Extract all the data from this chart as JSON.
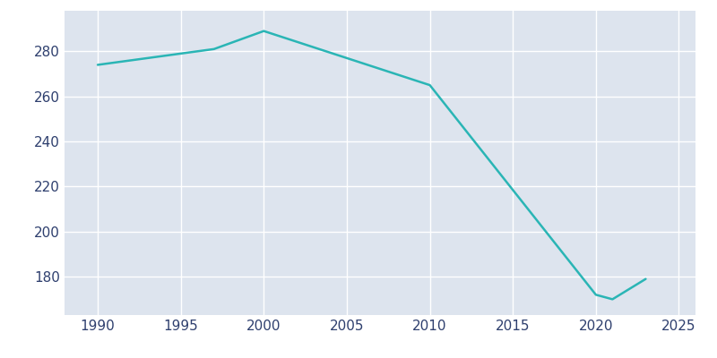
{
  "years": [
    1990,
    1997,
    2000,
    2010,
    2020,
    2021,
    2023
  ],
  "population": [
    274,
    281,
    289,
    265,
    172,
    170,
    179
  ],
  "line_color": "#2ab5b5",
  "plot_bg_color": "#dde4ee",
  "fig_bg_color": "#ffffff",
  "grid_color": "#ffffff",
  "tick_color": "#2e3f6e",
  "xlim": [
    1988,
    2026
  ],
  "ylim": [
    163,
    298
  ],
  "xticks": [
    1990,
    1995,
    2000,
    2005,
    2010,
    2015,
    2020,
    2025
  ],
  "yticks": [
    180,
    200,
    220,
    240,
    260,
    280
  ],
  "linewidth": 1.8,
  "figsize": [
    8.0,
    4.0
  ],
  "dpi": 100
}
